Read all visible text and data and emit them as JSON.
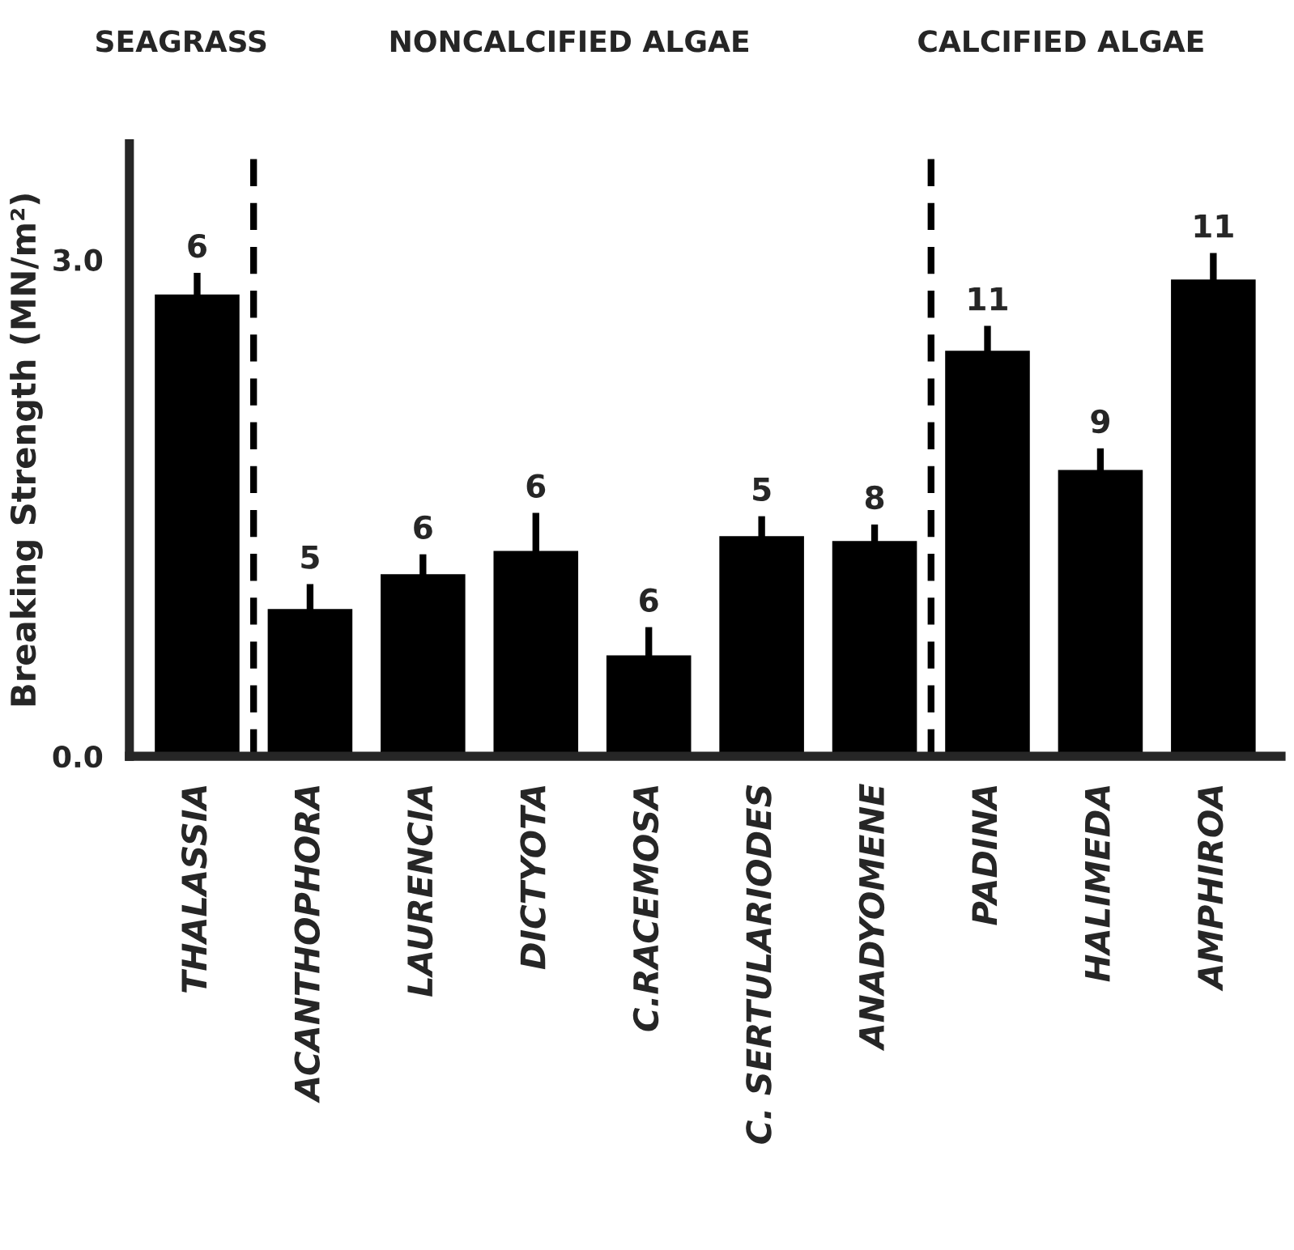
{
  "chart_data": {
    "type": "bar",
    "ylabel": "Breaking Strength (MN/m²)",
    "categories": [
      "THALASSIA",
      "ACANTHOPHORA",
      "LAURENCIA",
      "DICTYOTA",
      "C.RACEMOSA",
      "C. SERTULARIODES",
      "ANADYOMENE",
      "PADINA",
      "HALIMEDA",
      "AMPHIROA"
    ],
    "values": [
      2.79,
      0.89,
      1.1,
      1.24,
      0.61,
      1.33,
      1.3,
      2.45,
      1.73,
      2.88
    ],
    "errors": [
      0.13,
      0.15,
      0.12,
      0.23,
      0.17,
      0.12,
      0.1,
      0.15,
      0.13,
      0.16
    ],
    "color": "#000000",
    "ylim": [
      0,
      3.7
    ],
    "yticks": [
      {
        "value": 0,
        "label": "0.0"
      },
      {
        "value": 3,
        "label": "3.0"
      }
    ],
    "annotations": [
      "SEAGRASS",
      "NONCALCIFIED ALGAE",
      "CALCIFIED ALGAE",
      {
        "text": "6",
        "x": "THALASSIA",
        "y": 2.92
      },
      {
        "text": "5",
        "x": "ACANTHOPHORA",
        "y": 1.04
      },
      {
        "text": "6",
        "x": "LAURENCIA",
        "y": 1.22
      },
      {
        "text": "6",
        "x": "DICTYOTA",
        "y": 1.47
      },
      {
        "text": "6",
        "x": "C.RACEMOSA",
        "y": 0.78
      },
      {
        "text": "5",
        "x": "C. SERTULARIODES",
        "y": 1.45
      },
      {
        "text": "8",
        "x": "ANADYOMENE",
        "y": 1.4
      },
      {
        "text": "11",
        "x": "PADINA",
        "y": 2.6
      },
      {
        "text": "9",
        "x": "HALIMEDA",
        "y": 1.86
      },
      {
        "text": "11",
        "x": "AMPHIROA",
        "y": 3.04
      }
    ],
    "grid": false
  }
}
